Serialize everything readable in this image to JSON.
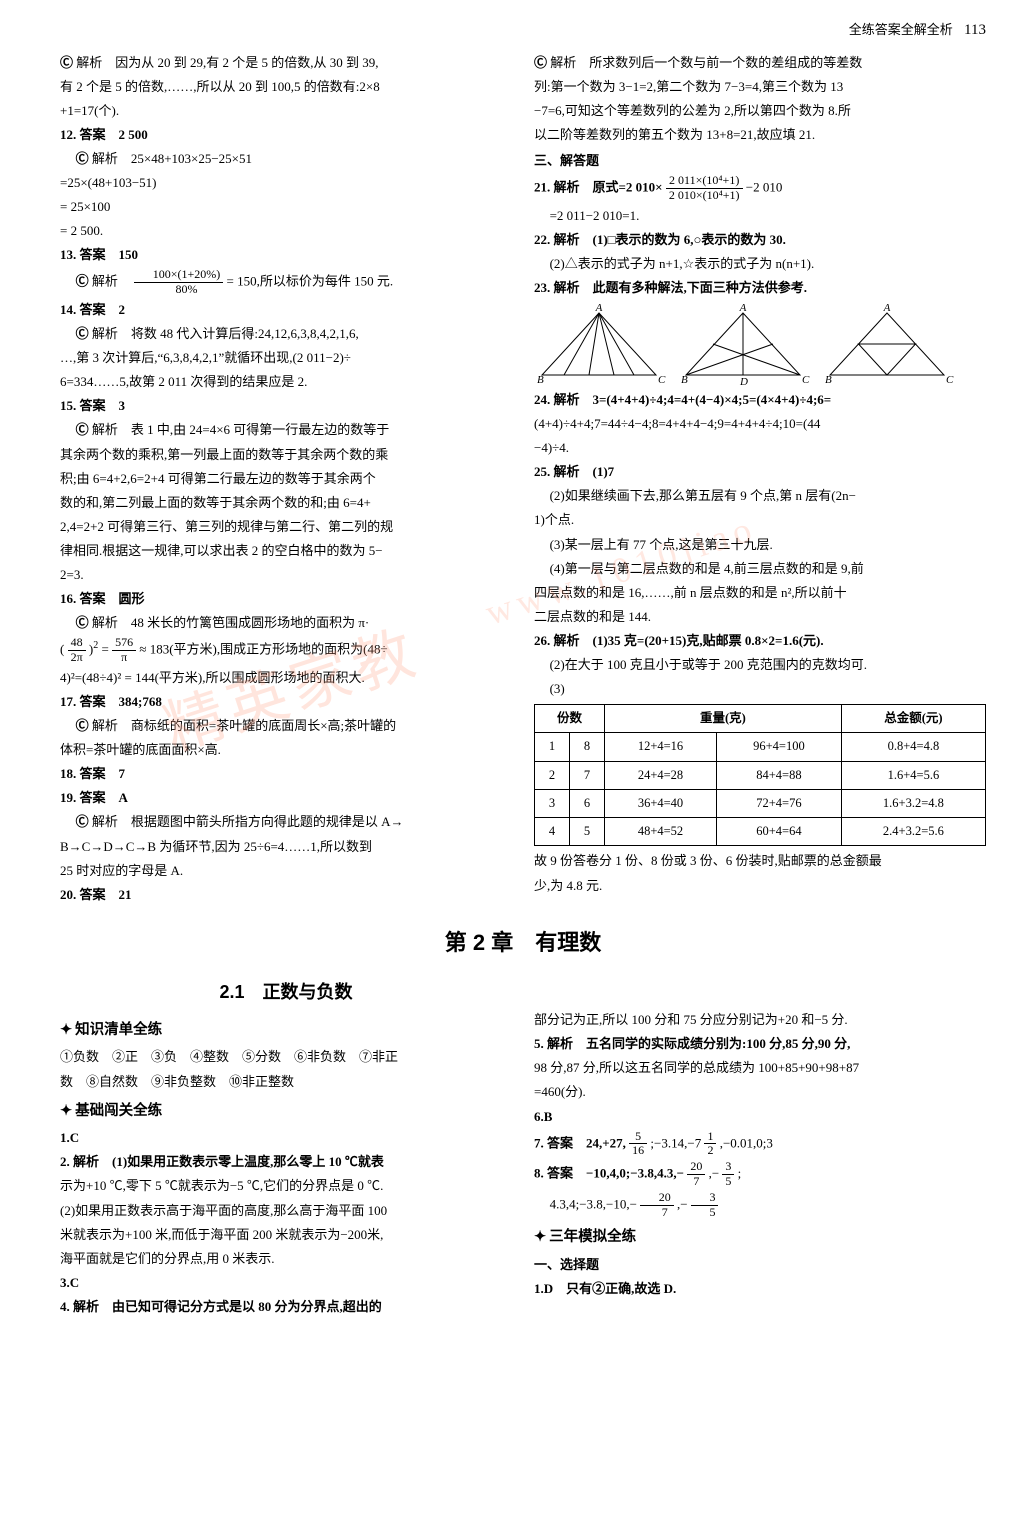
{
  "header": {
    "label": "全练答案全解全析",
    "page_num": "113"
  },
  "watermarks": {
    "wm1": "精英家教",
    "wm2": "www.1010jiao"
  },
  "chapter": {
    "title": "第 2 章　有理数"
  },
  "section": {
    "title": "2.1　正数与负数"
  },
  "left_top": {
    "l1": "解析　因为从 20 到 29,有 2 个是 5 的倍数,从 30 到 39,",
    "l2": "有 2 个是 5 的倍数,……,所以从 20 到 100,5 的倍数有:2×8",
    "l3": "+1=17(个).",
    "q12a": "12.  答案　2 500",
    "q12b": "解析　25×48+103×25−25×51",
    "q12c": "=25×(48+103−51)",
    "q12d": "= 25×100",
    "q12e": "= 2 500.",
    "q13a": "13.  答案　150",
    "q13b_pre": "解析　",
    "q13b_num": "100×(1+20%)",
    "q13b_den": "80%",
    "q13b_post": " = 150,所以标价为每件 150 元.",
    "q14a": "14.  答案　2",
    "q14b": "解析　将数 48 代入计算后得:24,12,6,3,8,4,2,1,6,",
    "q14c": "…,第 3 次计算后,“6,3,8,4,2,1”就循环出现,(2 011−2)÷",
    "q14d": "6=334……5,故第 2 011 次得到的结果应是 2.",
    "q15a": "15.  答案　3",
    "q15b": "解析　表 1 中,由 24=4×6 可得第一行最左边的数等于",
    "q15c": "其余两个数的乘积,第一列最上面的数等于其余两个数的乘",
    "q15d": "积;由 6=4+2,6=2+4 可得第二行最左边的数等于其余两个",
    "q15e": "数的和,第二列最上面的数等于其余两个数的和;由 6=4+",
    "q15f": "2,4=2+2 可得第三行、第三列的规律与第二行、第二列的规",
    "q15g": "律相同.根据这一规律,可以求出表 2 的空白格中的数为 5−",
    "q15h": "2=3.",
    "q16a": "16.  答案　圆形",
    "q16b": "解析　48 米长的竹篱笆围成圆形场地的面积为 π·",
    "q16c_pre": "(",
    "q16c_num": "48",
    "q16c_den": "2π",
    "q16c_mid": ")",
    "q16c_exp": "2",
    "q16c_eq": " = ",
    "q16c_num2": "576",
    "q16c_den2": "π",
    "q16c_post": " ≈ 183(平方米),围成正方形场地的面积为(48÷",
    "q16d": "4)²=(48÷4)² = 144(平方米),所以围成圆形场地的面积大.",
    "q17a": "17.  答案　384;768",
    "q17b": "解析　商标纸的面积=茶叶罐的底面周长×高;茶叶罐的",
    "q17c": "体积=茶叶罐的底面面积×高.",
    "q18a": "18.  答案　7",
    "q19a": "19.  答案　A",
    "q19b": "解析　根据题图中箭头所指方向得此题的规律是以 A→",
    "q19c": "B→C→D→C→B 为循环节,因为 25÷6=4……1,所以数到",
    "q19d": "25 时对应的字母是 A.",
    "q20a": "20.  答案　21"
  },
  "right_top": {
    "r1": "解析　所求数列后一个数与前一个数的差组成的等差数",
    "r2": "列:第一个数为 3−1=2,第二个数为 7−3=4,第三个数为 13",
    "r3": "−7=6,可知这个等差数列的公差为 2,所以第四个数为 8.所",
    "r4": "以二阶等差数列的第五个数为 13+8=21,故应填 21.",
    "h3": "三、解答题",
    "q21a_pre": "21.  解析　原式=2 010×",
    "q21a_num": "2 011×(10⁴+1)",
    "q21a_den": "2 010×(10⁴+1)",
    "q21a_post": "−2 010",
    "q21b": "=2 011−2 010=1.",
    "q22a": "22.  解析　(1)□表示的数为 6,○表示的数为 30.",
    "q22b": "(2)△表示的式子为 n+1,☆表示的式子为 n(n+1).",
    "q23a": "23.  解析　此题有多种解法,下面三种方法供参考.",
    "tri_labels": {
      "A": "A",
      "B": "B",
      "C": "C",
      "D": "D"
    },
    "q24a": "24.  解析　3=(4+4+4)÷4;4=4+(4−4)×4;5=(4×4+4)÷4;6=",
    "q24b": "(4+4)÷4+4;7=44÷4−4;8=4+4+4−4;9=4+4+4÷4;10=(44",
    "q24c": "−4)÷4.",
    "q25a": "25.  解析　(1)7",
    "q25b": "(2)如果继续画下去,那么第五层有 9 个点,第 n 层有(2n−",
    "q25c": "1)个点.",
    "q25d": "(3)某一层上有 77 个点,这是第三十九层.",
    "q25e": "(4)第一层与第二层点数的和是 4,前三层点数的和是 9,前",
    "q25f": "四层点数的和是 16,……,前 n 层点数的和是 n²,所以前十",
    "q25g": "二层点数的和是 144.",
    "q26a": "26.  解析　(1)35 克=(20+15)克,贴邮票 0.8×2=1.6(元).",
    "q26b": "(2)在大于 100 克且小于或等于 200 克范围内的克数均可.",
    "q26c": "(3)",
    "table": {
      "headers": [
        "份数",
        "",
        "重量(克)",
        "",
        "总金额(元)"
      ],
      "rows": [
        [
          "1",
          "8",
          "12+4=16",
          "96+4=100",
          "0.8+4=4.8"
        ],
        [
          "2",
          "7",
          "24+4=28",
          "84+4=88",
          "1.6+4=5.6"
        ],
        [
          "3",
          "6",
          "36+4=40",
          "72+4=76",
          "1.6+3.2=4.8"
        ],
        [
          "4",
          "5",
          "48+4=52",
          "60+4=64",
          "2.4+3.2=5.6"
        ]
      ]
    },
    "r_tail1": "故 9 份答卷分 1 份、8 份或 3 份、6 份装时,贴邮票的总金额最",
    "r_tail2": "少,为 4.8 元."
  },
  "left_bottom": {
    "s1": "知识清单全练",
    "k1": "①负数　②正　③负　④整数　⑤分数　⑥非负数　⑦非正",
    "k2": "数　⑧自然数　⑨非负整数　⑩非正整数",
    "s2": "基础闯关全练",
    "q1": "1.C",
    "q2a": "2.  解析　(1)如果用正数表示零上温度,那么零上 10 ℃就表",
    "q2b": "示为+10 ℃,零下 5 ℃就表示为−5 ℃,它们的分界点是 0 ℃.",
    "q2c": "(2)如果用正数表示高于海平面的高度,那么高于海平面 100",
    "q2d": "米就表示为+100 米,而低于海平面 200 米就表示为−200米,",
    "q2e": "海平面就是它们的分界点,用 0 米表示.",
    "q3": "3.C",
    "q4": "4.  解析　由已知可得记分方式是以 80 分为分界点,超出的"
  },
  "right_bottom": {
    "r1": "部分记为正,所以 100 分和 75 分应分别记为+20 和−5 分.",
    "q5a": "5.  解析　五名同学的实际成绩分别为:100 分,85 分,90 分,",
    "q5b": "98 分,87 分,所以这五名同学的总成绩为 100+85+90+98+87",
    "q5c": "=460(分).",
    "q6": "6.B",
    "q7a_pre": "7.  答案　24,+27,",
    "q7a_n1": "5",
    "q7a_d1": "16",
    "q7a_mid": ";−3.14,−7 ",
    "q7a_n2": "1",
    "q7a_d2": "2",
    "q7a_post": ",−0.01,0;3",
    "q8a_pre": "8.  答案　−10,4,0;−3.8,4.3,−",
    "q8a_n1": "20",
    "q8a_d1": "7",
    "q8a_mid": ",−",
    "q8a_n2": "3",
    "q8a_d2": "5",
    "q8a_post": ";",
    "q8b_pre": "4.3,4;−3.8,−10,−",
    "q8b_n1": "20",
    "q8b_d1": "7",
    "q8b_mid": ",−",
    "q8b_n2": "3",
    "q8b_d2": "5",
    "s3": "三年模拟全练",
    "h_sel": "一、选择题",
    "q1d": "1.D　只有②正确,故选 D."
  }
}
